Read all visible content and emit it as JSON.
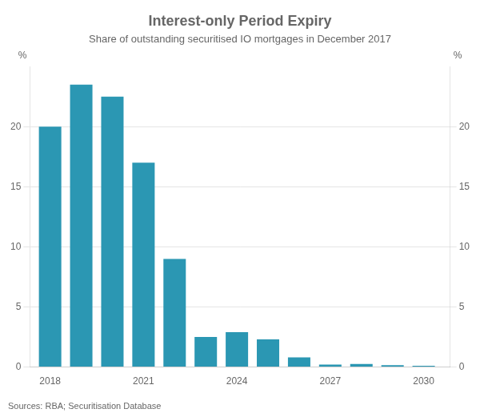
{
  "chart_data": {
    "type": "bar",
    "title": "Interest-only Period Expiry",
    "subtitle": "Share of outstanding securitised IO mortgages in December 2017",
    "ylabel": "%",
    "y2label": "%",
    "source": "Sources: RBA; Securitisation Database",
    "x": [
      2018,
      2019,
      2020,
      2021,
      2022,
      2023,
      2024,
      2025,
      2026,
      2027,
      2028,
      2029,
      2030
    ],
    "values": [
      20.0,
      23.5,
      22.5,
      17.0,
      9.0,
      2.5,
      2.9,
      2.3,
      0.8,
      0.2,
      0.25,
      0.15,
      0.1
    ],
    "color": "#2b97b3",
    "xlim": [
      2017.35,
      2030.85
    ],
    "xticks": [
      2018,
      2021,
      2024,
      2027,
      2030
    ],
    "ylim": [
      0,
      25
    ],
    "yticks": [
      0,
      5,
      10,
      15,
      20
    ],
    "y2lim": [
      0,
      25
    ],
    "y2ticks": [
      0,
      5,
      10,
      15,
      20
    ],
    "grid": "y"
  }
}
